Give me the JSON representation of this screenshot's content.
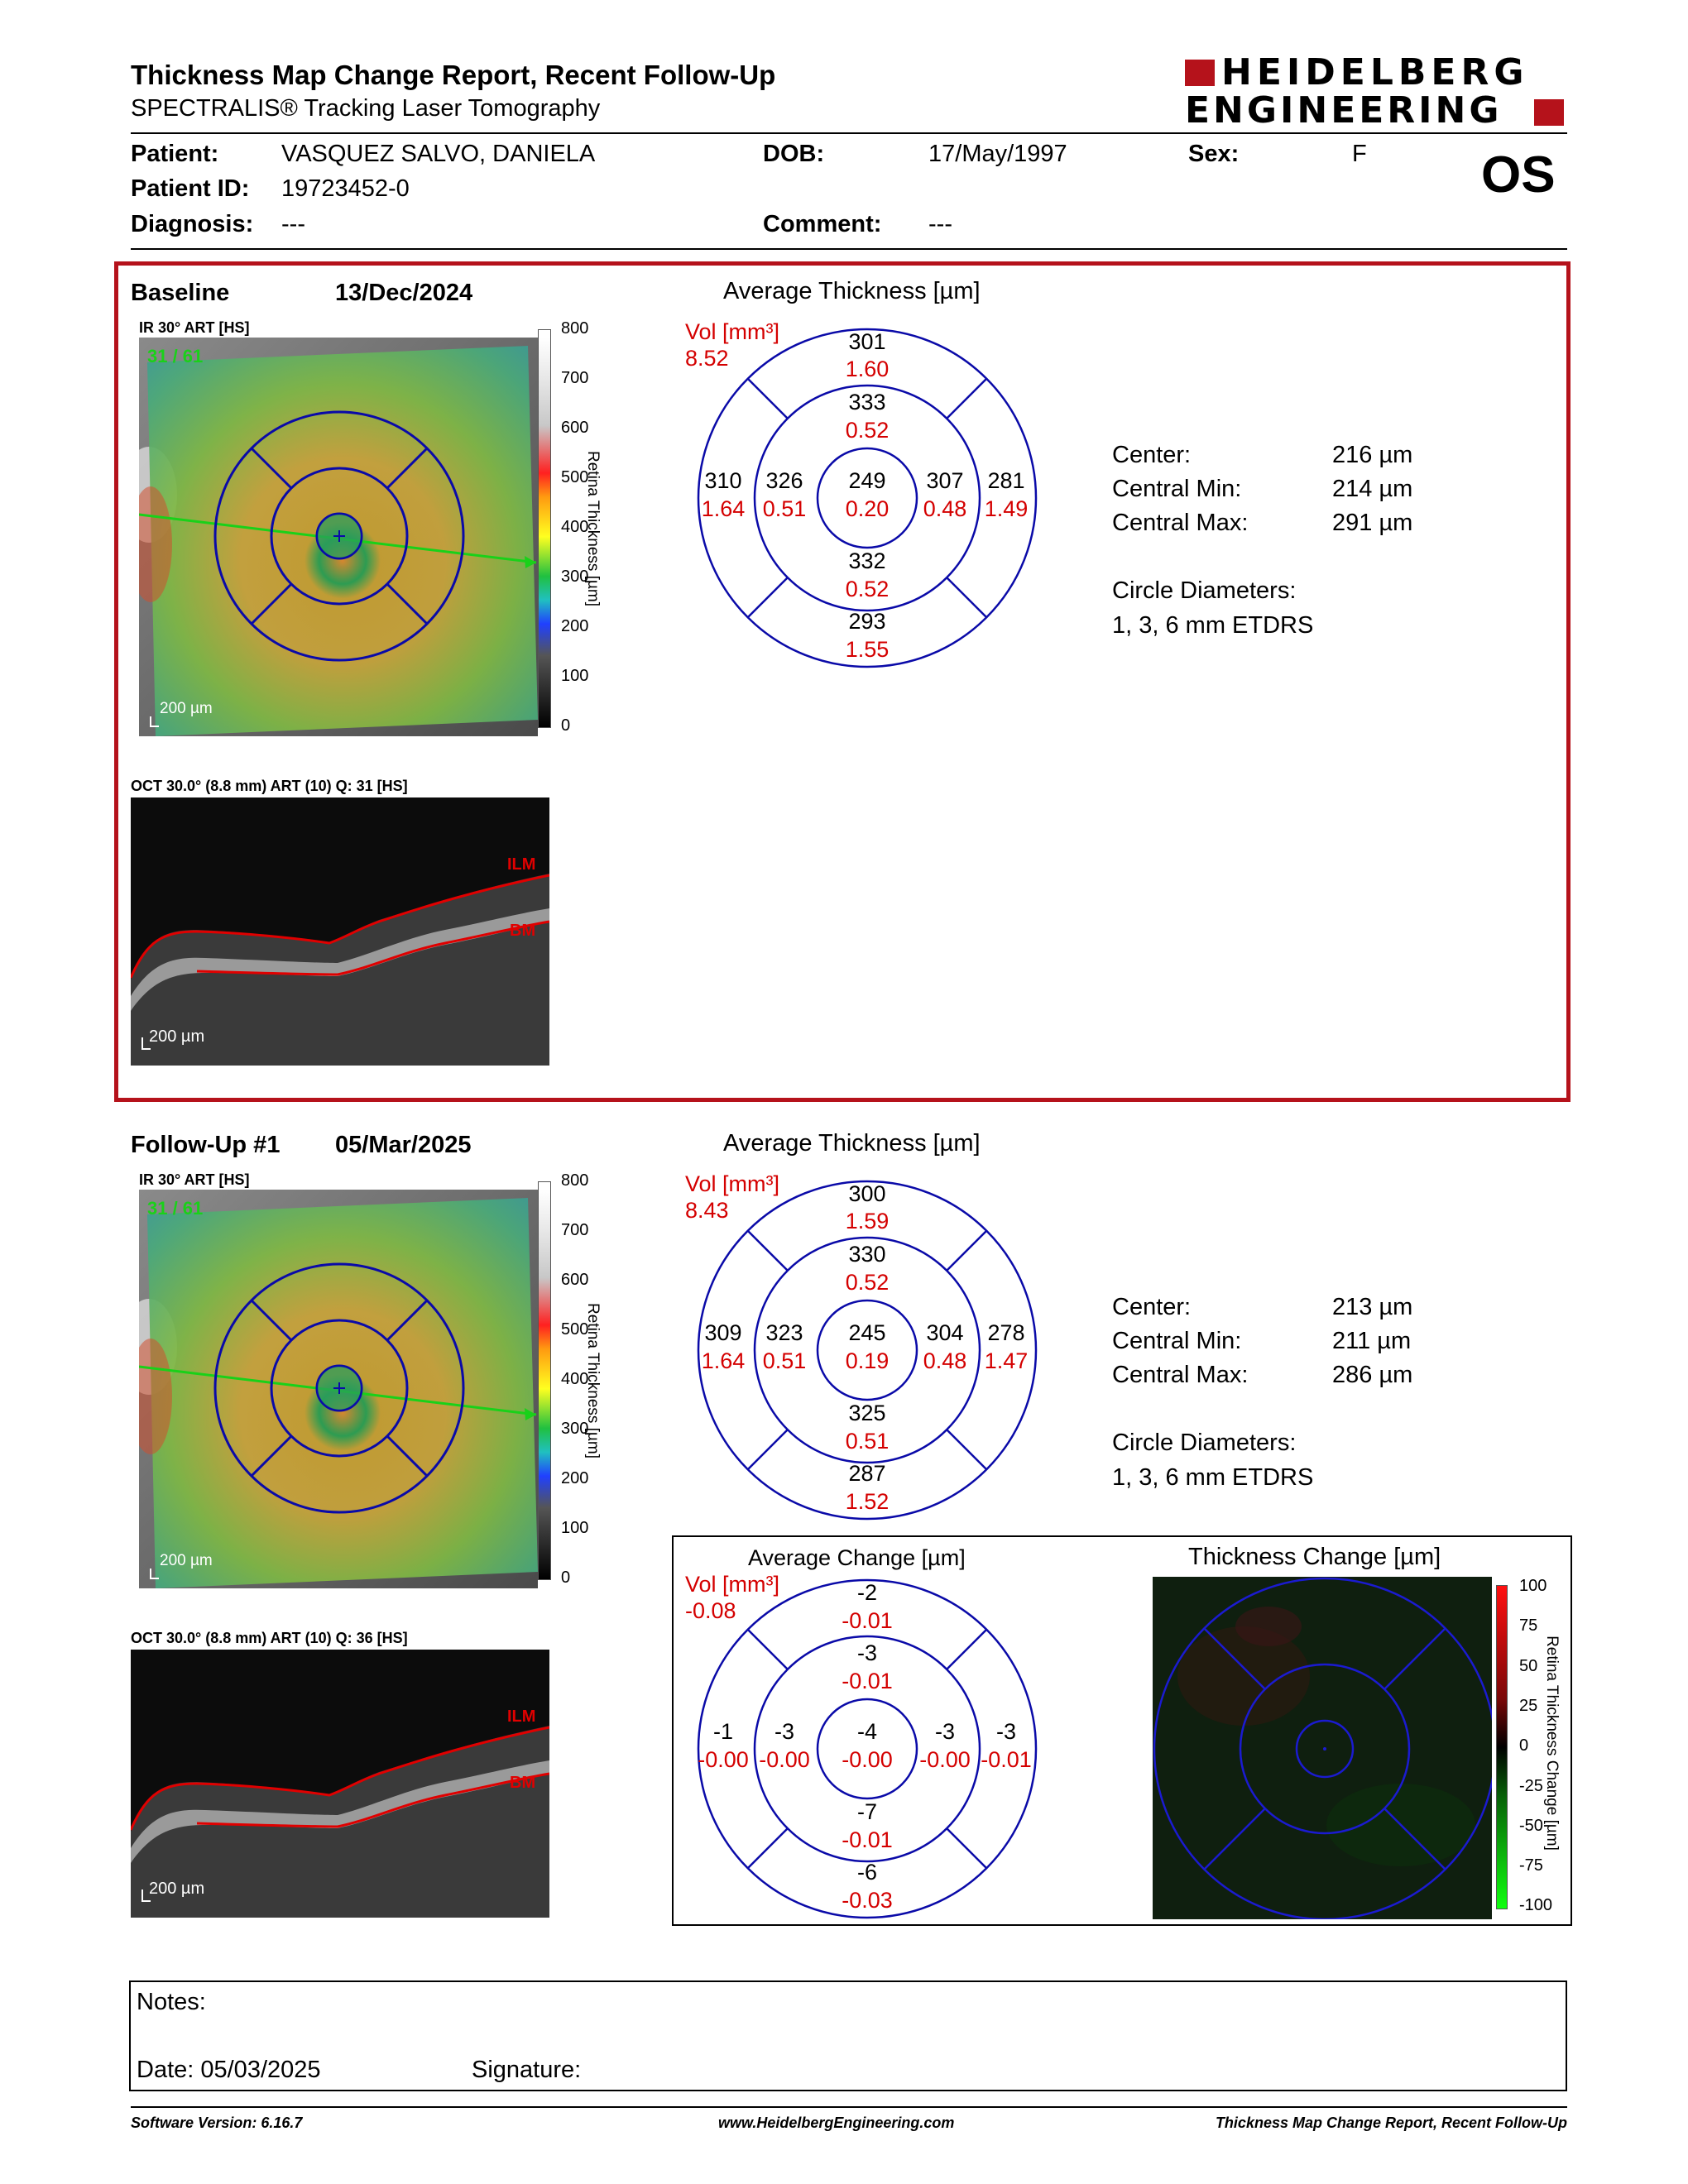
{
  "header": {
    "title": "Thickness Map Change Report, Recent Follow-Up",
    "subtitle": "SPECTRALIS® Tracking Laser Tomography",
    "logo_line1": "HEIDELBERG",
    "logo_line2": "ENGINEERING"
  },
  "patient": {
    "patient_label": "Patient:",
    "patient_value": "VASQUEZ SALVO, DANIELA",
    "dob_label": "DOB:",
    "dob_value": "17/May/1997",
    "sex_label": "Sex:",
    "sex_value": "F",
    "id_label": "Patient ID:",
    "id_value": "19723452-0",
    "diagnosis_label": "Diagnosis:",
    "diagnosis_value": "---",
    "comment_label": "Comment:",
    "comment_value": "---",
    "eye": "OS"
  },
  "baseline": {
    "label": "Baseline",
    "date": "13/Dec/2024",
    "ir_label": "IR 30° ART [HS]",
    "ir_counter": "31 / 61",
    "scale_label": "200 µm",
    "colorbar_title": "Retina Thickness [µm]",
    "colorbar_ticks": [
      "800",
      "700",
      "600",
      "500",
      "400",
      "300",
      "200",
      "100",
      "0"
    ],
    "oct_label": "OCT 30.0° (8.8 mm) ART (10) Q: 31 [HS]",
    "ilm": "ILM",
    "bm": "BM",
    "etdrs": {
      "title": "Average Thickness [µm]",
      "vol_label": "Vol [mm³]",
      "vol_total": "8.52",
      "sup_outer": "301",
      "sup_outer_vol": "1.60",
      "sup_inner": "333",
      "sup_inner_vol": "0.52",
      "temp_outer": "310",
      "temp_outer_vol": "1.64",
      "temp_inner": "326",
      "temp_inner_vol": "0.51",
      "center": "249",
      "center_vol": "0.20",
      "nas_inner": "307",
      "nas_inner_vol": "0.48",
      "nas_outer": "281",
      "nas_outer_vol": "1.49",
      "inf_inner": "332",
      "inf_inner_vol": "0.52",
      "inf_outer": "293",
      "inf_outer_vol": "1.55"
    },
    "stats": {
      "center_label": "Center:",
      "center_value": "216 µm",
      "min_label": "Central Min:",
      "min_value": "214 µm",
      "max_label": "Central Max:",
      "max_value": "291 µm",
      "circle_label": "Circle Diameters:",
      "circle_value": "1, 3, 6 mm ETDRS"
    }
  },
  "followup": {
    "label": "Follow-Up #1",
    "date": "05/Mar/2025",
    "ir_label": "IR 30° ART [HS]",
    "ir_counter": "31 / 61",
    "scale_label": "200 µm",
    "colorbar_title": "Retina Thickness [µm]",
    "colorbar_ticks": [
      "800",
      "700",
      "600",
      "500",
      "400",
      "300",
      "200",
      "100",
      "0"
    ],
    "oct_label": "OCT 30.0° (8.8 mm) ART (10) Q: 36 [HS]",
    "ilm": "ILM",
    "bm": "BM",
    "etdrs": {
      "title": "Average Thickness [µm]",
      "vol_label": "Vol [mm³]",
      "vol_total": "8.43",
      "sup_outer": "300",
      "sup_outer_vol": "1.59",
      "sup_inner": "330",
      "sup_inner_vol": "0.52",
      "temp_outer": "309",
      "temp_outer_vol": "1.64",
      "temp_inner": "323",
      "temp_inner_vol": "0.51",
      "center": "245",
      "center_vol": "0.19",
      "nas_inner": "304",
      "nas_inner_vol": "0.48",
      "nas_outer": "278",
      "nas_outer_vol": "1.47",
      "inf_inner": "325",
      "inf_inner_vol": "0.51",
      "inf_outer": "287",
      "inf_outer_vol": "1.52"
    },
    "stats": {
      "center_label": "Center:",
      "center_value": "213 µm",
      "min_label": "Central Min:",
      "min_value": "211 µm",
      "max_label": "Central Max:",
      "max_value": "286 µm",
      "circle_label": "Circle Diameters:",
      "circle_value": "1, 3, 6 mm ETDRS"
    }
  },
  "change": {
    "etdrs": {
      "title": "Average Change [µm]",
      "vol_label": "Vol [mm³]",
      "vol_total": "-0.08",
      "sup_outer": "-2",
      "sup_outer_vol": "-0.01",
      "sup_inner": "-3",
      "sup_inner_vol": "-0.01",
      "temp_outer": "-1",
      "temp_outer_vol": "-0.00",
      "temp_inner": "-3",
      "temp_inner_vol": "-0.00",
      "center": "-4",
      "center_vol": "-0.00",
      "nas_inner": "-3",
      "nas_inner_vol": "-0.00",
      "nas_outer": "-3",
      "nas_outer_vol": "-0.01",
      "inf_inner": "-7",
      "inf_inner_vol": "-0.01",
      "inf_outer": "-6",
      "inf_outer_vol": "-0.03"
    },
    "map_title": "Thickness Change [µm]",
    "colorbar_title": "Retina Thickness Change [µm]",
    "colorbar_ticks": [
      "100",
      "75",
      "50",
      "25",
      "0",
      "-25",
      "-50",
      "-75",
      "-100"
    ]
  },
  "notes": {
    "notes_label": "Notes:",
    "date_label": "Date: 05/03/2025",
    "signature_label": "Signature:"
  },
  "footer": {
    "software": "Software Version: 6.16.7",
    "website": "www.HeidelbergEngineering.com",
    "report_name": "Thickness Map Change Report, Recent Follow-Up"
  },
  "colors": {
    "accent_red": "#b5121b",
    "value_red": "#d40000",
    "grid_blue": "#0a0aa8",
    "scan_green": "#19d119"
  }
}
